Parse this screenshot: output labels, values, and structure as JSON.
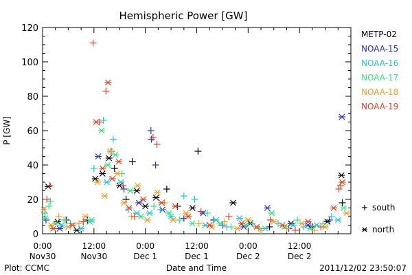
{
  "chart_data": {
    "type": "scatter",
    "title": "Hemispheric Power [GW]",
    "xlabel": "Date and Time",
    "ylabel": "P [GW]",
    "xlim": [
      0,
      72
    ],
    "ylim": [
      0,
      120
    ],
    "y_ticks": [
      0,
      20,
      40,
      60,
      80,
      100,
      120
    ],
    "x_ticks": [
      {
        "x": 0,
        "label": "0:00",
        "sub": "Nov30"
      },
      {
        "x": 12,
        "label": "12:00",
        "sub": "Nov30"
      },
      {
        "x": 24,
        "label": "0:00",
        "sub": "Dec 1"
      },
      {
        "x": 36,
        "label": "12:00",
        "sub": "Dec 1"
      },
      {
        "x": 48,
        "label": "0:00",
        "sub": "Dec 2"
      },
      {
        "x": 60,
        "label": "12:00",
        "sub": "Dec 2"
      }
    ],
    "x_minor_step": 3,
    "y_minor_step": 5,
    "legend_position": "right",
    "marker_legend": [
      {
        "marker": "+",
        "label": "south"
      },
      {
        "marker": "*",
        "label": "north"
      }
    ],
    "series": [
      {
        "name": "METP-02",
        "color": "#000000",
        "points": [
          {
            "x": 1.3,
            "y": 27.5,
            "m": "*"
          },
          {
            "x": 3.5,
            "y": 7,
            "m": "*"
          },
          {
            "x": 5.5,
            "y": 8,
            "m": "+"
          },
          {
            "x": 8.0,
            "y": 2,
            "m": "*"
          },
          {
            "x": 10.5,
            "y": 8,
            "m": "+"
          },
          {
            "x": 12.3,
            "y": 32,
            "m": "*"
          },
          {
            "x": 14.0,
            "y": 35,
            "m": "*"
          },
          {
            "x": 15.5,
            "y": 44,
            "m": "*"
          },
          {
            "x": 16.8,
            "y": 38,
            "m": "+"
          },
          {
            "x": 18.0,
            "y": 28,
            "m": "*"
          },
          {
            "x": 19.5,
            "y": 20,
            "m": "+"
          },
          {
            "x": 21.0,
            "y": 42,
            "m": "+"
          },
          {
            "x": 22.0,
            "y": 25,
            "m": "*"
          },
          {
            "x": 24.0,
            "y": 16,
            "m": "*"
          },
          {
            "x": 26.5,
            "y": 21,
            "m": "*"
          },
          {
            "x": 29.0,
            "y": 26,
            "m": "+"
          },
          {
            "x": 31.5,
            "y": 16,
            "m": "+"
          },
          {
            "x": 35.0,
            "y": 15,
            "m": "*"
          },
          {
            "x": 36.3,
            "y": 48,
            "m": "+"
          },
          {
            "x": 40.0,
            "y": 8,
            "m": "+"
          },
          {
            "x": 44.5,
            "y": 18,
            "m": "*"
          },
          {
            "x": 48.5,
            "y": 6,
            "m": "*"
          },
          {
            "x": 53.0,
            "y": 4,
            "m": "+"
          },
          {
            "x": 58.0,
            "y": 6,
            "m": "*"
          },
          {
            "x": 63.0,
            "y": 4,
            "m": "+"
          },
          {
            "x": 66.5,
            "y": 7,
            "m": "*"
          },
          {
            "x": 69.8,
            "y": 34,
            "m": "*"
          },
          {
            "x": 70.0,
            "y": 18,
            "m": "+"
          }
        ]
      },
      {
        "name": "NOAA-15",
        "color": "#1f2fd6",
        "points": [
          {
            "x": 0.8,
            "y": 8,
            "m": "+"
          },
          {
            "x": 4.0,
            "y": 3,
            "m": "*"
          },
          {
            "x": 13.0,
            "y": 45,
            "m": "*"
          },
          {
            "x": 16.0,
            "y": 48,
            "m": "+"
          },
          {
            "x": 19.0,
            "y": 26,
            "m": "+"
          },
          {
            "x": 22.5,
            "y": 18,
            "m": "*"
          },
          {
            "x": 25.3,
            "y": 60,
            "m": "+"
          },
          {
            "x": 25.4,
            "y": 55,
            "m": "+"
          },
          {
            "x": 26.4,
            "y": 40,
            "m": "+"
          },
          {
            "x": 28.0,
            "y": 14,
            "m": "*"
          },
          {
            "x": 33.0,
            "y": 9,
            "m": "+"
          },
          {
            "x": 37.5,
            "y": 12,
            "m": "*"
          },
          {
            "x": 42.0,
            "y": 5,
            "m": "+"
          },
          {
            "x": 47.0,
            "y": 4,
            "m": "*"
          },
          {
            "x": 52.5,
            "y": 15,
            "m": "*"
          },
          {
            "x": 57.5,
            "y": 3,
            "m": "+"
          },
          {
            "x": 62.0,
            "y": 5,
            "m": "*"
          },
          {
            "x": 67.0,
            "y": 8,
            "m": "+"
          },
          {
            "x": 69.9,
            "y": 68,
            "m": "*"
          }
        ]
      },
      {
        "name": "NOAA-16",
        "color": "#19c8e6",
        "points": [
          {
            "x": 0.5,
            "y": 12,
            "m": "+"
          },
          {
            "x": 1.8,
            "y": 19,
            "m": "+"
          },
          {
            "x": 4.5,
            "y": 5,
            "m": "*"
          },
          {
            "x": 6.5,
            "y": 6,
            "m": "+"
          },
          {
            "x": 9.0,
            "y": 3,
            "m": "*"
          },
          {
            "x": 11.0,
            "y": 7,
            "m": "*"
          },
          {
            "x": 12.0,
            "y": 38,
            "m": "+"
          },
          {
            "x": 14.2,
            "y": 66,
            "m": "+"
          },
          {
            "x": 15.0,
            "y": 30,
            "m": "*"
          },
          {
            "x": 16.5,
            "y": 55,
            "m": "+"
          },
          {
            "x": 18.3,
            "y": 30,
            "m": "*"
          },
          {
            "x": 20.0,
            "y": 14,
            "m": "+"
          },
          {
            "x": 22.0,
            "y": 12,
            "m": "*"
          },
          {
            "x": 25.0,
            "y": 12,
            "m": "*"
          },
          {
            "x": 27.5,
            "y": 14,
            "m": "+"
          },
          {
            "x": 30.0,
            "y": 10,
            "m": "*"
          },
          {
            "x": 33.0,
            "y": 22,
            "m": "+"
          },
          {
            "x": 35.5,
            "y": 20,
            "m": "+"
          },
          {
            "x": 38.0,
            "y": 5,
            "m": "*"
          },
          {
            "x": 40.5,
            "y": 8,
            "m": "*"
          },
          {
            "x": 43.0,
            "y": 4,
            "m": "+"
          },
          {
            "x": 46.0,
            "y": 9,
            "m": "*"
          },
          {
            "x": 49.0,
            "y": 6,
            "m": "+"
          },
          {
            "x": 52.0,
            "y": 3,
            "m": "*"
          },
          {
            "x": 55.0,
            "y": 6,
            "m": "+"
          },
          {
            "x": 58.5,
            "y": 5,
            "m": "*"
          },
          {
            "x": 61.0,
            "y": 4,
            "m": "+"
          },
          {
            "x": 64.0,
            "y": 5,
            "m": "*"
          },
          {
            "x": 67.5,
            "y": 10,
            "m": "+"
          },
          {
            "x": 69.0,
            "y": 8,
            "m": "*"
          }
        ]
      },
      {
        "name": "NOAA-17",
        "color": "#2ee87a",
        "points": [
          {
            "x": 0.6,
            "y": 9,
            "m": "*"
          },
          {
            "x": 1.5,
            "y": 16,
            "m": "+"
          },
          {
            "x": 3.0,
            "y": 6,
            "m": "*"
          },
          {
            "x": 5.0,
            "y": 8,
            "m": "+"
          },
          {
            "x": 11.5,
            "y": 8,
            "m": "*"
          },
          {
            "x": 13.8,
            "y": 60,
            "m": "*"
          },
          {
            "x": 15.2,
            "y": 40,
            "m": "*"
          },
          {
            "x": 17.0,
            "y": 46,
            "m": "*"
          },
          {
            "x": 18.5,
            "y": 35,
            "m": "+"
          },
          {
            "x": 20.5,
            "y": 25,
            "m": "*"
          },
          {
            "x": 23.0,
            "y": 10,
            "m": "*"
          },
          {
            "x": 26.0,
            "y": 16,
            "m": "+"
          },
          {
            "x": 29.5,
            "y": 12,
            "m": "*"
          },
          {
            "x": 32.0,
            "y": 8,
            "m": "+"
          },
          {
            "x": 35.0,
            "y": 6,
            "m": "*"
          },
          {
            "x": 38.5,
            "y": 12,
            "m": "+"
          },
          {
            "x": 41.5,
            "y": 6,
            "m": "*"
          },
          {
            "x": 44.0,
            "y": 4,
            "m": "+"
          },
          {
            "x": 47.5,
            "y": 5,
            "m": "*"
          },
          {
            "x": 50.5,
            "y": 3,
            "m": "+"
          },
          {
            "x": 53.5,
            "y": 12,
            "m": "*"
          },
          {
            "x": 56.5,
            "y": 4,
            "m": "*"
          },
          {
            "x": 59.5,
            "y": 8,
            "m": "+"
          },
          {
            "x": 62.5,
            "y": 3,
            "m": "*"
          },
          {
            "x": 65.5,
            "y": 6,
            "m": "+"
          },
          {
            "x": 70.3,
            "y": 15,
            "m": "*"
          }
        ]
      },
      {
        "name": "NOAA-18",
        "color": "#f0a020",
        "points": [
          {
            "x": 0.3,
            "y": 14,
            "m": "*"
          },
          {
            "x": 2.0,
            "y": 5,
            "m": "*"
          },
          {
            "x": 3.8,
            "y": 10,
            "m": "+"
          },
          {
            "x": 6.0,
            "y": 4,
            "m": "*"
          },
          {
            "x": 8.5,
            "y": 6,
            "m": "+"
          },
          {
            "x": 10.0,
            "y": 10,
            "m": "*"
          },
          {
            "x": 12.8,
            "y": 30,
            "m": "*"
          },
          {
            "x": 14.5,
            "y": 22,
            "m": "*"
          },
          {
            "x": 15.8,
            "y": 48,
            "m": "*"
          },
          {
            "x": 17.5,
            "y": 35,
            "m": "*"
          },
          {
            "x": 19.0,
            "y": 18,
            "m": "*"
          },
          {
            "x": 20.8,
            "y": 10,
            "m": "+"
          },
          {
            "x": 22.2,
            "y": 28,
            "m": "*"
          },
          {
            "x": 24.5,
            "y": 8,
            "m": "*"
          },
          {
            "x": 26.8,
            "y": 24,
            "m": "*"
          },
          {
            "x": 28.5,
            "y": 18,
            "m": "+"
          },
          {
            "x": 30.5,
            "y": 8,
            "m": "*"
          },
          {
            "x": 33.5,
            "y": 12,
            "m": "*"
          },
          {
            "x": 36.5,
            "y": 6,
            "m": "+"
          },
          {
            "x": 39.5,
            "y": 4,
            "m": "*"
          },
          {
            "x": 42.5,
            "y": 7,
            "m": "+"
          },
          {
            "x": 45.5,
            "y": 3,
            "m": "*"
          },
          {
            "x": 48.0,
            "y": 8,
            "m": "*"
          },
          {
            "x": 51.0,
            "y": 2,
            "m": "+"
          },
          {
            "x": 54.0,
            "y": 7,
            "m": "*"
          },
          {
            "x": 57.0,
            "y": 3,
            "m": "+"
          },
          {
            "x": 60.5,
            "y": 6,
            "m": "*"
          },
          {
            "x": 63.5,
            "y": 2,
            "m": "+"
          },
          {
            "x": 66.0,
            "y": 4,
            "m": "*"
          },
          {
            "x": 71.0,
            "y": 12,
            "m": "*"
          }
        ]
      },
      {
        "name": "NOAA-19",
        "color": "#e8401e",
        "points": [
          {
            "x": 1.0,
            "y": 20,
            "m": "+"
          },
          {
            "x": 1.7,
            "y": 28,
            "m": "+"
          },
          {
            "x": 2.5,
            "y": 3,
            "m": "*"
          },
          {
            "x": 7.0,
            "y": 5,
            "m": "*"
          },
          {
            "x": 9.5,
            "y": 7,
            "m": "+"
          },
          {
            "x": 11.8,
            "y": 111,
            "m": "+"
          },
          {
            "x": 12.5,
            "y": 65,
            "m": "*"
          },
          {
            "x": 13.3,
            "y": 65,
            "m": "+"
          },
          {
            "x": 14.0,
            "y": 38,
            "m": "*"
          },
          {
            "x": 14.8,
            "y": 83,
            "m": "+"
          },
          {
            "x": 15.3,
            "y": 88,
            "m": "*"
          },
          {
            "x": 16.3,
            "y": 32,
            "m": "*"
          },
          {
            "x": 17.8,
            "y": 42,
            "m": "*"
          },
          {
            "x": 18.8,
            "y": 28,
            "m": "+"
          },
          {
            "x": 20.2,
            "y": 15,
            "m": "*"
          },
          {
            "x": 21.5,
            "y": 10,
            "m": "+"
          },
          {
            "x": 23.5,
            "y": 20,
            "m": "*"
          },
          {
            "x": 25.8,
            "y": 56,
            "m": "+"
          },
          {
            "x": 26.7,
            "y": 52,
            "m": "+"
          },
          {
            "x": 27.8,
            "y": 18,
            "m": "*"
          },
          {
            "x": 31.0,
            "y": 16,
            "m": "*"
          },
          {
            "x": 34.0,
            "y": 10,
            "m": "*"
          },
          {
            "x": 37.0,
            "y": 13,
            "m": "+"
          },
          {
            "x": 39.0,
            "y": 5,
            "m": "*"
          },
          {
            "x": 43.5,
            "y": 10,
            "m": "+"
          },
          {
            "x": 46.5,
            "y": 6,
            "m": "*"
          },
          {
            "x": 50.0,
            "y": 4,
            "m": "*"
          },
          {
            "x": 53.2,
            "y": 8,
            "m": "+"
          },
          {
            "x": 56.0,
            "y": 5,
            "m": "*"
          },
          {
            "x": 59.0,
            "y": 2,
            "m": "+"
          },
          {
            "x": 62.0,
            "y": 7,
            "m": "*"
          },
          {
            "x": 65.0,
            "y": 4,
            "m": "+"
          },
          {
            "x": 68.0,
            "y": 15,
            "m": "*"
          },
          {
            "x": 69.2,
            "y": 26,
            "m": "+"
          },
          {
            "x": 69.6,
            "y": 28,
            "m": "+"
          },
          {
            "x": 70.0,
            "y": 30,
            "m": "*"
          }
        ]
      }
    ]
  },
  "footer": {
    "left": "Plot: CCMC",
    "right": "2011/12/02 23:50:07"
  }
}
